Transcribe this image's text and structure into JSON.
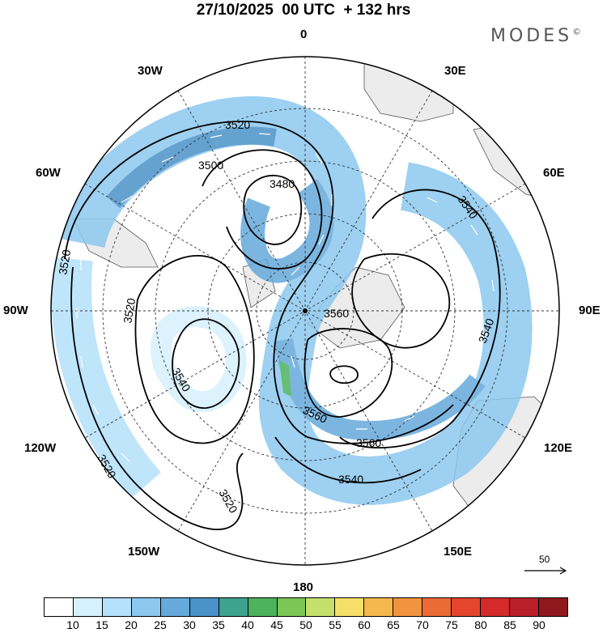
{
  "title": "27/10/2025  00 UTC  + 132 hrs",
  "brand": "MODES",
  "brand_mark": "©",
  "longitude_labels": {
    "top": "0",
    "deg30w": "30W",
    "deg30e": "30E",
    "deg60w": "60W",
    "deg60e": "60E",
    "deg90w": "90W",
    "deg90e": "90E",
    "deg120w": "120W",
    "deg120e": "120E",
    "deg150w": "150W",
    "deg150e": "150E",
    "bottom": "180"
  },
  "contour_labels": [
    "3520",
    "3500",
    "3480",
    "3540",
    "3520",
    "3520",
    "3520",
    "3540",
    "3560",
    "3540",
    "3560",
    "3560",
    "3540",
    "3520"
  ],
  "colorbar": {
    "colors": [
      "#ffffff",
      "#d6f0fd",
      "#b4e1fb",
      "#8cc8ef",
      "#66aadb",
      "#4a92c8",
      "#3ea38e",
      "#4cb25c",
      "#7cc656",
      "#c4e06a",
      "#f7e06a",
      "#f5b84d",
      "#f19440",
      "#ec6b35",
      "#e4452c",
      "#d42a2a",
      "#b81f28",
      "#8e1a1e"
    ],
    "ticks": [
      "10",
      "15",
      "20",
      "25",
      "30",
      "35",
      "40",
      "45",
      "50",
      "55",
      "60",
      "65",
      "70",
      "75",
      "80",
      "85",
      "90"
    ]
  },
  "reference_vector": "50"
}
